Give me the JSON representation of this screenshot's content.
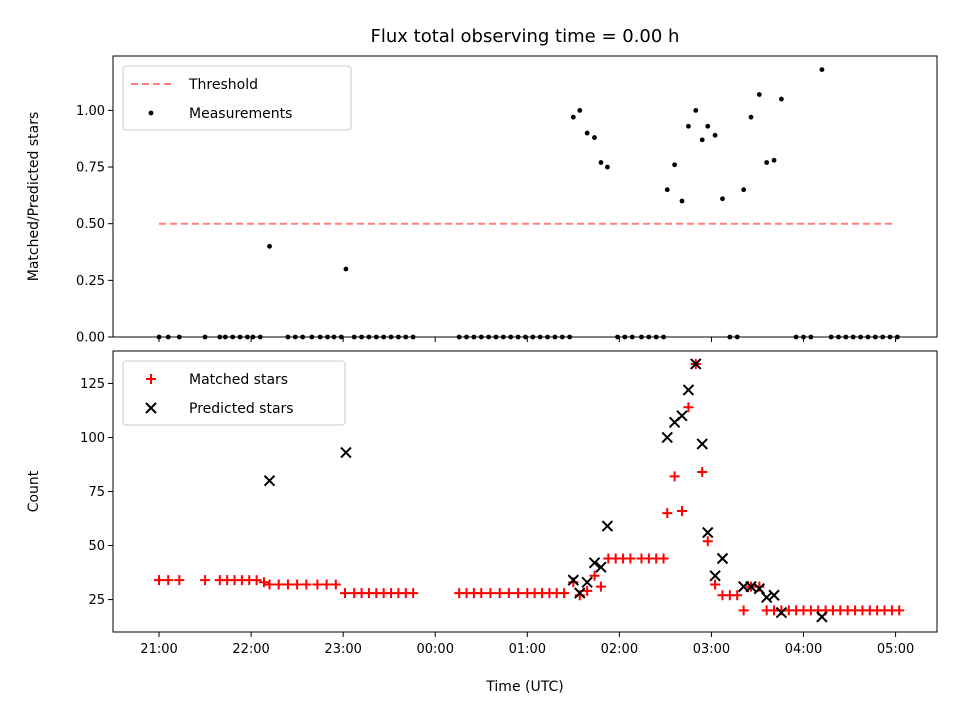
{
  "chart_data": {
    "title": "Flux total observing time = 0.00 h",
    "xlabel": "Time (UTC)",
    "x_unit": "hours since 21:00 UTC",
    "xlim": [
      -0.5,
      8.45
    ],
    "x_ticks": [
      {
        "x": 0,
        "label": "21:00"
      },
      {
        "x": 1,
        "label": "22:00"
      },
      {
        "x": 2,
        "label": "23:00"
      },
      {
        "x": 3,
        "label": "00:00"
      },
      {
        "x": 4,
        "label": "01:00"
      },
      {
        "x": 5,
        "label": "02:00"
      },
      {
        "x": 6,
        "label": "03:00"
      },
      {
        "x": 7,
        "label": "04:00"
      },
      {
        "x": 8,
        "label": "05:00"
      }
    ],
    "panels": [
      {
        "type": "scatter",
        "ylabel": "Matched/Predicted stars",
        "ylim": [
          0,
          1.24
        ],
        "y_ticks": [
          0,
          0.25,
          0.5,
          0.75,
          1.0
        ],
        "y_tick_labels": [
          "0.00",
          "0.25",
          "0.50",
          "0.75",
          "1.00"
        ],
        "legend": {
          "position": "top-left",
          "entries": [
            "Threshold",
            "Measurements"
          ]
        },
        "threshold": {
          "name": "Threshold",
          "y": 0.5,
          "x_range": [
            0,
            8
          ],
          "color": "#ff7f7f",
          "style": "dashed"
        },
        "series": [
          {
            "name": "Measurements",
            "color": "#000000",
            "marker": "dot",
            "points": [
              [
                0,
                0
              ],
              [
                0.1,
                0
              ],
              [
                0.22,
                0
              ],
              [
                0.5,
                0
              ],
              [
                0.66,
                0
              ],
              [
                0.72,
                0
              ],
              [
                0.8,
                0
              ],
              [
                0.88,
                0
              ],
              [
                0.96,
                0
              ],
              [
                1.02,
                0
              ],
              [
                1.1,
                0
              ],
              [
                1.2,
                0.4
              ],
              [
                1.4,
                0
              ],
              [
                1.48,
                0
              ],
              [
                1.56,
                0
              ],
              [
                1.66,
                0
              ],
              [
                1.75,
                0
              ],
              [
                1.83,
                0
              ],
              [
                1.9,
                0
              ],
              [
                1.98,
                0
              ],
              [
                2.03,
                0.3
              ],
              [
                2.12,
                0
              ],
              [
                2.2,
                0
              ],
              [
                2.28,
                0
              ],
              [
                2.36,
                0
              ],
              [
                2.44,
                0
              ],
              [
                2.52,
                0
              ],
              [
                2.6,
                0
              ],
              [
                2.68,
                0
              ],
              [
                2.76,
                0
              ],
              [
                3.26,
                0
              ],
              [
                3.34,
                0
              ],
              [
                3.42,
                0
              ],
              [
                3.5,
                0
              ],
              [
                3.58,
                0
              ],
              [
                3.66,
                0
              ],
              [
                3.74,
                0
              ],
              [
                3.82,
                0
              ],
              [
                3.9,
                0
              ],
              [
                3.98,
                0
              ],
              [
                4.06,
                0
              ],
              [
                4.14,
                0
              ],
              [
                4.22,
                0
              ],
              [
                4.3,
                0
              ],
              [
                4.38,
                0
              ],
              [
                4.46,
                0
              ],
              [
                4.5,
                0.97
              ],
              [
                4.57,
                1.0
              ],
              [
                4.65,
                0.9
              ],
              [
                4.73,
                0.88
              ],
              [
                4.8,
                0.77
              ],
              [
                4.87,
                0.75
              ],
              [
                4.98,
                0
              ],
              [
                5.06,
                0
              ],
              [
                5.14,
                0
              ],
              [
                5.24,
                0
              ],
              [
                5.32,
                0
              ],
              [
                5.4,
                0
              ],
              [
                5.48,
                0
              ],
              [
                5.52,
                0.65
              ],
              [
                5.6,
                0.76
              ],
              [
                5.68,
                0.6
              ],
              [
                5.75,
                0.93
              ],
              [
                5.83,
                1.0
              ],
              [
                5.9,
                0.87
              ],
              [
                5.96,
                0.93
              ],
              [
                6.04,
                0.89
              ],
              [
                6.12,
                0.61
              ],
              [
                6.2,
                0
              ],
              [
                6.28,
                0
              ],
              [
                6.35,
                0.65
              ],
              [
                6.43,
                0.97
              ],
              [
                6.52,
                1.07
              ],
              [
                6.6,
                0.77
              ],
              [
                6.68,
                0.78
              ],
              [
                6.76,
                1.05
              ],
              [
                6.92,
                0
              ],
              [
                7.0,
                0
              ],
              [
                7.08,
                0
              ],
              [
                7.2,
                1.18
              ],
              [
                7.3,
                0
              ],
              [
                7.38,
                0
              ],
              [
                7.46,
                0
              ],
              [
                7.54,
                0
              ],
              [
                7.62,
                0
              ],
              [
                7.7,
                0
              ],
              [
                7.78,
                0
              ],
              [
                7.86,
                0
              ],
              [
                7.94,
                0
              ],
              [
                8.02,
                0
              ]
            ]
          }
        ]
      },
      {
        "type": "scatter",
        "ylabel": "Count",
        "ylim": [
          10,
          140
        ],
        "y_ticks": [
          25,
          50,
          75,
          100,
          125
        ],
        "y_tick_labels": [
          "25",
          "50",
          "75",
          "100",
          "125"
        ],
        "legend": {
          "position": "top-left",
          "entries": [
            "Matched stars",
            "Predicted stars"
          ]
        },
        "series": [
          {
            "name": "Matched stars",
            "color": "#ff0000",
            "marker": "plus",
            "points": [
              [
                0,
                34
              ],
              [
                0.1,
                34
              ],
              [
                0.22,
                34
              ],
              [
                0.5,
                34
              ],
              [
                0.66,
                34
              ],
              [
                0.74,
                34
              ],
              [
                0.82,
                34
              ],
              [
                0.9,
                34
              ],
              [
                0.98,
                34
              ],
              [
                1.06,
                34
              ],
              [
                1.14,
                33
              ],
              [
                1.2,
                32
              ],
              [
                1.3,
                32
              ],
              [
                1.4,
                32
              ],
              [
                1.5,
                32
              ],
              [
                1.6,
                32
              ],
              [
                1.72,
                32
              ],
              [
                1.82,
                32
              ],
              [
                1.92,
                32
              ],
              [
                2.02,
                28
              ],
              [
                2.12,
                28
              ],
              [
                2.2,
                28
              ],
              [
                2.28,
                28
              ],
              [
                2.36,
                28
              ],
              [
                2.44,
                28
              ],
              [
                2.52,
                28
              ],
              [
                2.6,
                28
              ],
              [
                2.68,
                28
              ],
              [
                2.76,
                28
              ],
              [
                3.26,
                28
              ],
              [
                3.34,
                28
              ],
              [
                3.42,
                28
              ],
              [
                3.5,
                28
              ],
              [
                3.6,
                28
              ],
              [
                3.7,
                28
              ],
              [
                3.8,
                28
              ],
              [
                3.9,
                28
              ],
              [
                4.0,
                28
              ],
              [
                4.08,
                28
              ],
              [
                4.16,
                28
              ],
              [
                4.24,
                28
              ],
              [
                4.32,
                28
              ],
              [
                4.4,
                28
              ],
              [
                4.5,
                33
              ],
              [
                4.57,
                27
              ],
              [
                4.65,
                29
              ],
              [
                4.73,
                36
              ],
              [
                4.8,
                31
              ],
              [
                4.88,
                44
              ],
              [
                4.96,
                44
              ],
              [
                5.04,
                44
              ],
              [
                5.12,
                44
              ],
              [
                5.24,
                44
              ],
              [
                5.32,
                44
              ],
              [
                5.4,
                44
              ],
              [
                5.48,
                44
              ],
              [
                5.52,
                65
              ],
              [
                5.6,
                82
              ],
              [
                5.68,
                66
              ],
              [
                5.75,
                114
              ],
              [
                5.83,
                134
              ],
              [
                5.9,
                84
              ],
              [
                5.96,
                52
              ],
              [
                6.04,
                32
              ],
              [
                6.12,
                27
              ],
              [
                6.2,
                27
              ],
              [
                6.28,
                27
              ],
              [
                6.35,
                20
              ],
              [
                6.43,
                31
              ],
              [
                6.52,
                31
              ],
              [
                6.6,
                20
              ],
              [
                6.68,
                20
              ],
              [
                6.76,
                20
              ],
              [
                6.84,
                20
              ],
              [
                6.92,
                20
              ],
              [
                7.0,
                20
              ],
              [
                7.08,
                20
              ],
              [
                7.16,
                20
              ],
              [
                7.24,
                20
              ],
              [
                7.32,
                20
              ],
              [
                7.4,
                20
              ],
              [
                7.48,
                20
              ],
              [
                7.56,
                20
              ],
              [
                7.64,
                20
              ],
              [
                7.72,
                20
              ],
              [
                7.8,
                20
              ],
              [
                7.88,
                20
              ],
              [
                7.96,
                20
              ],
              [
                8.04,
                20
              ]
            ]
          },
          {
            "name": "Predicted stars",
            "color": "#000000",
            "marker": "x",
            "points": [
              [
                1.2,
                80
              ],
              [
                2.03,
                93
              ],
              [
                4.5,
                34
              ],
              [
                4.57,
                28
              ],
              [
                4.65,
                33
              ],
              [
                4.73,
                42
              ],
              [
                4.8,
                40
              ],
              [
                4.87,
                59
              ],
              [
                5.52,
                100
              ],
              [
                5.6,
                107
              ],
              [
                5.68,
                110
              ],
              [
                5.75,
                122
              ],
              [
                5.83,
                134
              ],
              [
                5.9,
                97
              ],
              [
                5.96,
                56
              ],
              [
                6.04,
                36
              ],
              [
                6.12,
                44
              ],
              [
                6.35,
                31
              ],
              [
                6.43,
                31
              ],
              [
                6.52,
                30
              ],
              [
                6.6,
                26
              ],
              [
                6.68,
                27
              ],
              [
                6.76,
                19
              ],
              [
                7.2,
                17
              ]
            ]
          }
        ]
      }
    ]
  }
}
